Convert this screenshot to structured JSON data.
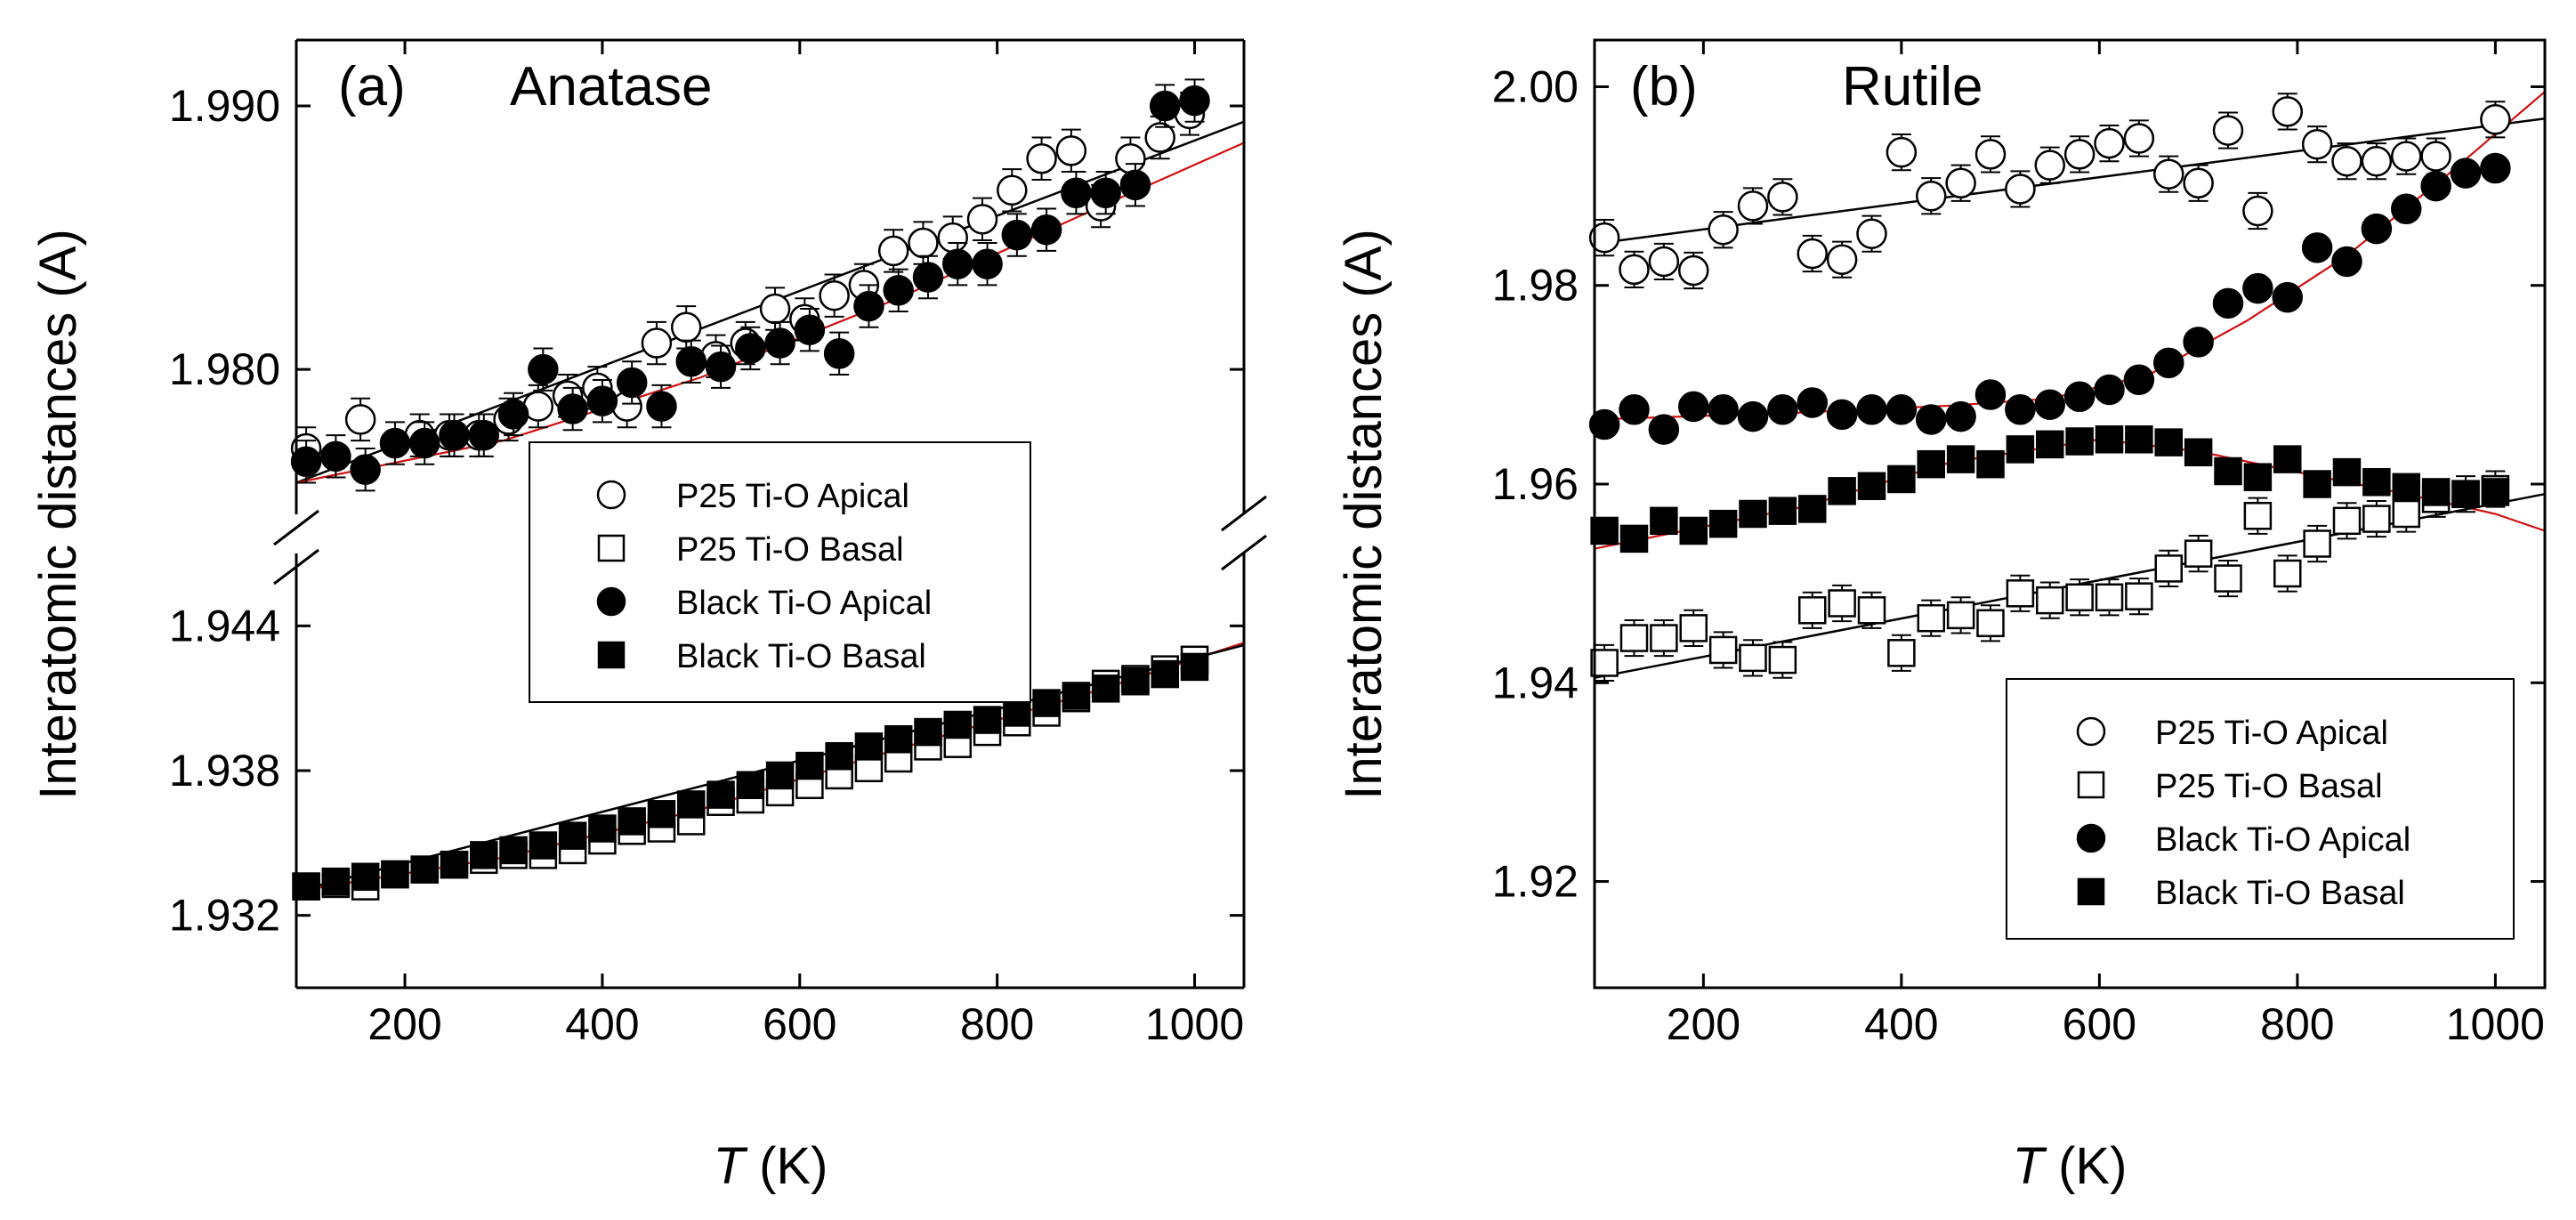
{
  "chart_data": [
    {
      "type": "scatter",
      "panel_label": "(a)",
      "title": "Anatase",
      "xlabel_italic": "T",
      "xlabel_rest": " (K)",
      "ylabel": "Interatomic distances (A)",
      "xlim": [
        90,
        1050
      ],
      "x_ticks": [
        200,
        400,
        600,
        800,
        1000
      ],
      "x_tick_labels": [
        "200",
        "400",
        "600",
        "800",
        "1000"
      ],
      "axis_break": true,
      "upper_ylim": [
        1.9745,
        1.9925
      ],
      "upper_ticks": [
        1.98,
        1.99
      ],
      "upper_tick_labels": [
        "1.980",
        "1.990"
      ],
      "lower_ylim": [
        1.929,
        1.947
      ],
      "lower_ticks": [
        1.932,
        1.938,
        1.944
      ],
      "lower_tick_labels": [
        "1.932",
        "1.938",
        "1.944"
      ],
      "legend": {
        "position": "center-right",
        "entries": [
          {
            "label": "P25 Ti-O Apical",
            "marker": "open-circle"
          },
          {
            "label": "P25 Ti-O Basal",
            "marker": "open-square"
          },
          {
            "label": "Black Ti-O Apical",
            "marker": "filled-circle"
          },
          {
            "label": "Black Ti-O Basal",
            "marker": "filled-square"
          }
        ]
      },
      "series": [
        {
          "name": "P25 Ti-O Apical",
          "marker": "open-circle",
          "segment": "upper",
          "yerr": 0.0008,
          "x": [
            100,
            155,
            215,
            245,
            275,
            305,
            335,
            365,
            395,
            425,
            455,
            485,
            515,
            545,
            575,
            605,
            635,
            665,
            695,
            725,
            755,
            785,
            815,
            845,
            875,
            905,
            935,
            965,
            995
          ],
          "y": [
            1.977,
            1.9781,
            1.9775,
            1.9775,
            1.9775,
            1.9781,
            1.9786,
            1.979,
            1.9793,
            1.9786,
            1.981,
            1.9816,
            1.9805,
            1.981,
            1.9823,
            1.9819,
            1.9828,
            1.9832,
            1.9845,
            1.9848,
            1.985,
            1.9857,
            1.9868,
            1.988,
            1.9883,
            1.9862,
            1.988,
            1.9888,
            1.9897
          ]
        },
        {
          "name": "Black Ti-O Apical",
          "marker": "filled-circle",
          "segment": "upper",
          "yerr": 0.0008,
          "x": [
            100,
            130,
            160,
            190,
            220,
            250,
            280,
            310,
            340,
            370,
            400,
            430,
            460,
            490,
            520,
            550,
            580,
            610,
            640,
            670,
            700,
            730,
            760,
            790,
            820,
            850,
            880,
            910,
            940,
            970,
            1000
          ],
          "y": [
            1.9765,
            1.9767,
            1.9762,
            1.9772,
            1.9772,
            1.9775,
            1.9775,
            1.9783,
            1.98,
            1.9785,
            1.9788,
            1.9795,
            1.9786,
            1.9803,
            1.9801,
            1.9808,
            1.981,
            1.9815,
            1.9806,
            1.9824,
            1.983,
            1.9835,
            1.984,
            1.984,
            1.9851,
            1.9853,
            1.9867,
            1.9867,
            1.987,
            1.99,
            1.9902
          ]
        },
        {
          "name": "P25 Ti-O Basal",
          "marker": "open-square",
          "segment": "lower",
          "yerr": 0.0003,
          "x": [
            100,
            130,
            160,
            190,
            220,
            250,
            280,
            310,
            340,
            370,
            400,
            430,
            460,
            490,
            520,
            550,
            580,
            610,
            640,
            670,
            700,
            730,
            760,
            790,
            820,
            850,
            880,
            910,
            940,
            970,
            1000
          ],
          "y": [
            1.9332,
            1.9333,
            1.9332,
            1.9337,
            1.9339,
            1.9341,
            1.9343,
            1.9345,
            1.9345,
            1.9347,
            1.9351,
            1.9355,
            1.9356,
            1.9359,
            1.9367,
            1.9368,
            1.9371,
            1.9374,
            1.9378,
            1.9381,
            1.9385,
            1.939,
            1.9391,
            1.9396,
            1.94,
            1.9404,
            1.941,
            1.9416,
            1.9418,
            1.9422,
            1.9426
          ]
        },
        {
          "name": "Black Ti-O Basal",
          "marker": "filled-square",
          "segment": "lower",
          "yerr": 0.0003,
          "x": [
            100,
            130,
            160,
            190,
            220,
            250,
            280,
            310,
            340,
            370,
            400,
            430,
            460,
            490,
            520,
            550,
            580,
            610,
            640,
            670,
            700,
            730,
            760,
            790,
            820,
            850,
            880,
            910,
            940,
            970,
            1000
          ],
          "y": [
            1.9332,
            1.9334,
            1.9336,
            1.9337,
            1.9339,
            1.9341,
            1.9345,
            1.9347,
            1.9349,
            1.9353,
            1.9356,
            1.9359,
            1.9362,
            1.9366,
            1.937,
            1.9374,
            1.9378,
            1.9382,
            1.9386,
            1.939,
            1.9393,
            1.9396,
            1.9399,
            1.9401,
            1.9404,
            1.9408,
            1.9411,
            1.9414,
            1.9417,
            1.942,
            1.9423
          ]
        }
      ],
      "fits": [
        {
          "name": "upper linear fit",
          "color": "#000000",
          "segment": "upper",
          "x": [
            90,
            1050
          ],
          "y": [
            1.9757,
            1.9894
          ]
        },
        {
          "name": "upper red fit",
          "color": "#d01010",
          "segment": "upper",
          "x": [
            90,
            300,
            500,
            700,
            900,
            1050
          ],
          "y": [
            1.9757,
            1.9773,
            1.9797,
            1.9827,
            1.9861,
            1.9886
          ]
        },
        {
          "name": "lower red fit",
          "color": "#d01010",
          "segment": "lower",
          "x": [
            90,
            300,
            500,
            700,
            900,
            1050
          ],
          "y": [
            1.933,
            1.9344,
            1.9364,
            1.9389,
            1.9413,
            1.9433
          ]
        },
        {
          "name": "lower linear fit",
          "color": "#000000",
          "segment": "lower",
          "x": [
            90,
            1050
          ],
          "y": [
            1.933,
            1.9432
          ]
        }
      ]
    },
    {
      "type": "scatter",
      "panel_label": "(b)",
      "title": "Rutile",
      "xlabel_italic": "T",
      "xlabel_rest": " (K)",
      "ylabel": "Interatomic distances (A)",
      "xlim": [
        90,
        1050
      ],
      "x_ticks": [
        200,
        400,
        600,
        800,
        1000
      ],
      "x_tick_labels": [
        "200",
        "400",
        "600",
        "800",
        "1000"
      ],
      "axis_break": false,
      "ylim": [
        1.9093,
        2.0047
      ],
      "y_ticks": [
        1.92,
        1.94,
        1.96,
        1.98,
        2.0
      ],
      "y_tick_labels": [
        "1.92",
        "1.94",
        "1.96",
        "1.98",
        "2.00"
      ],
      "legend": {
        "position": "bottom-right",
        "entries": [
          {
            "label": "P25 Ti-O Apical",
            "marker": "open-circle"
          },
          {
            "label": "P25 Ti-O Basal",
            "marker": "open-square"
          },
          {
            "label": "Black Ti-O Apical",
            "marker": "filled-circle"
          },
          {
            "label": "Black Ti-O Basal",
            "marker": "filled-square"
          }
        ]
      },
      "series": [
        {
          "name": "P25 Ti-O Apical",
          "marker": "open-circle",
          "yerr": 0.0018,
          "x": [
            100,
            130,
            160,
            190,
            220,
            250,
            280,
            310,
            340,
            370,
            400,
            430,
            460,
            490,
            520,
            550,
            580,
            610,
            640,
            670,
            700,
            730,
            760,
            790,
            820,
            850,
            880,
            910,
            940,
            1000
          ],
          "y": [
            1.9848,
            1.9816,
            1.9824,
            1.9815,
            1.9856,
            1.988,
            1.9889,
            1.9832,
            1.9826,
            1.9852,
            1.9934,
            1.989,
            1.9903,
            1.9932,
            1.9897,
            1.9921,
            1.9932,
            1.9943,
            1.9948,
            1.9912,
            1.9903,
            1.9956,
            1.9875,
            1.9975,
            1.9942,
            1.9925,
            1.9925,
            1.993,
            1.993,
            1.9967
          ]
        },
        {
          "name": "Black Ti-O Apical",
          "marker": "filled-circle",
          "yerr": 0.0008,
          "x": [
            100,
            130,
            160,
            190,
            220,
            250,
            280,
            310,
            340,
            370,
            400,
            430,
            460,
            490,
            520,
            550,
            580,
            610,
            640,
            670,
            700,
            730,
            760,
            790,
            820,
            850,
            880,
            910,
            940,
            970,
            1000
          ],
          "y": [
            1.966,
            1.9675,
            1.9655,
            1.9678,
            1.9675,
            1.9668,
            1.9675,
            1.9682,
            1.967,
            1.9675,
            1.9675,
            1.9665,
            1.9668,
            1.969,
            1.9675,
            1.968,
            1.9688,
            1.9695,
            1.9705,
            1.9722,
            1.9743,
            1.9782,
            1.9797,
            1.9788,
            1.9838,
            1.9824,
            1.9857,
            1.9877,
            1.99,
            1.9913,
            1.9918
          ]
        },
        {
          "name": "P25 Ti-O Basal",
          "marker": "open-square",
          "yerr": 0.0018,
          "x": [
            100,
            130,
            160,
            190,
            220,
            250,
            280,
            310,
            340,
            370,
            400,
            430,
            460,
            490,
            520,
            550,
            580,
            610,
            640,
            670,
            700,
            730,
            760,
            790,
            820,
            850,
            880,
            910,
            940,
            970,
            1000
          ],
          "y": [
            1.942,
            1.9445,
            1.9445,
            1.9455,
            1.9433,
            1.9425,
            1.9423,
            1.9473,
            1.948,
            1.9473,
            1.943,
            1.9465,
            1.9468,
            1.946,
            1.949,
            1.9483,
            1.9486,
            1.9486,
            1.9487,
            1.9515,
            1.953,
            1.9505,
            1.9568,
            1.951,
            1.954,
            1.9563,
            1.9565,
            1.957,
            1.9585,
            1.959,
            1.9595
          ]
        },
        {
          "name": "Black Ti-O Basal",
          "marker": "filled-square",
          "yerr": 0.0008,
          "x": [
            100,
            130,
            160,
            190,
            220,
            250,
            280,
            310,
            340,
            370,
            400,
            430,
            460,
            490,
            520,
            550,
            580,
            610,
            640,
            670,
            700,
            730,
            760,
            790,
            820,
            850,
            880,
            910,
            940,
            970,
            1000
          ],
          "y": [
            1.9553,
            1.9545,
            1.9563,
            1.9553,
            1.956,
            1.957,
            1.9573,
            1.9575,
            1.9593,
            1.9598,
            1.9605,
            1.962,
            1.9625,
            1.962,
            1.9635,
            1.964,
            1.9643,
            1.9645,
            1.9645,
            1.9642,
            1.9632,
            1.9613,
            1.9607,
            1.9625,
            1.96,
            1.9612,
            1.9602,
            1.9597,
            1.9592,
            1.959,
            1.9592
          ]
        }
      ],
      "fits": [
        {
          "name": "P25 apical fit",
          "color": "#000000",
          "x": [
            90,
            1050
          ],
          "y": [
            1.9842,
            1.9968
          ]
        },
        {
          "name": "black apical fit",
          "color": "#d01010",
          "x": [
            90,
            300,
            450,
            550,
            650,
            750,
            850,
            950,
            1050
          ],
          "y": [
            1.9665,
            1.9672,
            1.9679,
            1.9686,
            1.971,
            1.9765,
            1.983,
            1.991,
            1.9995
          ]
        },
        {
          "name": "black basal fit",
          "color": "#d01010",
          "x": [
            90,
            300,
            450,
            600,
            700,
            800,
            900,
            1000,
            1050
          ],
          "y": [
            1.9535,
            1.9577,
            1.9622,
            1.9645,
            1.9633,
            1.9612,
            1.9592,
            1.957,
            1.9553
          ]
        },
        {
          "name": "P25 basal fit",
          "color": "#000000",
          "x": [
            90,
            1050
          ],
          "y": [
            1.9405,
            1.959
          ]
        }
      ]
    }
  ]
}
